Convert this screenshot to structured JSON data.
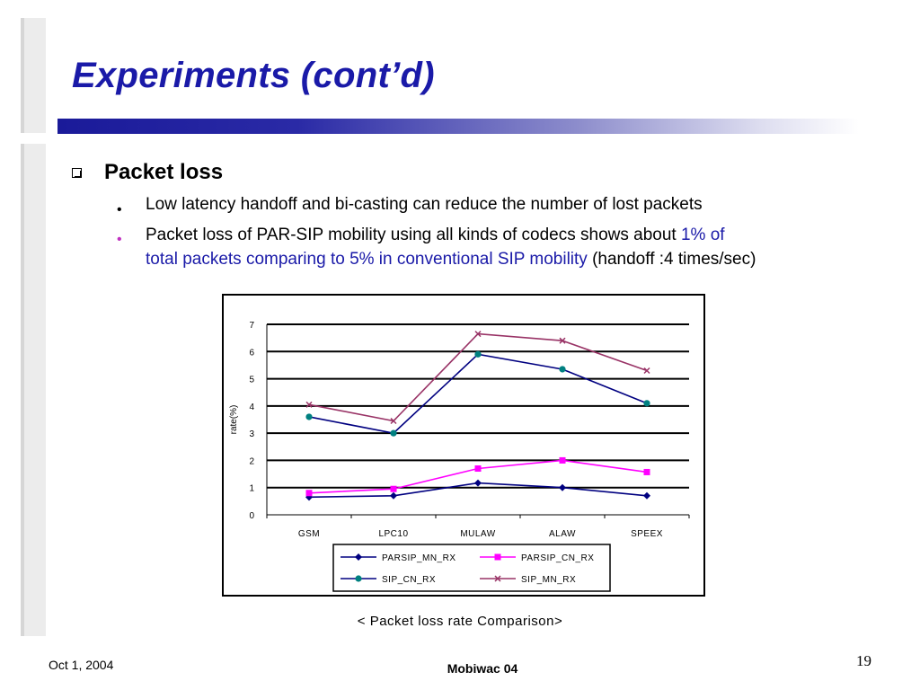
{
  "slide": {
    "title": "Experiments (cont’d)",
    "heading": "Packet loss",
    "bullets": [
      {
        "text": "Low latency handoff and bi-casting can reduce the number of lost packets"
      },
      {
        "line1_plain": "Packet loss of PAR-SIP mobility using all kinds of codecs shows about ",
        "line1_accent": "1% of",
        "line2_accent": "total packets comparing to 5% in conventional SIP mobility",
        "line2_plain": " (handoff :4 times/sec)"
      }
    ],
    "caption": "< Packet loss rate Comparison>"
  },
  "footer": {
    "date": "Oct 1, 2004",
    "center": "Mobiwac 04",
    "page": "19"
  },
  "colors": {
    "title": "#1a1aa8",
    "accent_text": "#1a1aa8",
    "bullet_dot_secondary": "#c030c0"
  },
  "chart_data": {
    "type": "line",
    "categories": [
      "GSM",
      "LPC10",
      "MULAW",
      "ALAW",
      "SPEEX"
    ],
    "ylabel": "rate(%)",
    "ylim": [
      0,
      7
    ],
    "yticks": [
      "0",
      "1",
      "2",
      "3",
      "4",
      "5",
      "6",
      "7"
    ],
    "grid": true,
    "legend_placement": "bottom",
    "series": [
      {
        "name": "PARSIP_MN_RX",
        "values": [
          0.65,
          0.7,
          1.17,
          1.0,
          0.7
        ],
        "color": "#000080",
        "marker": "diamond"
      },
      {
        "name": "PARSIP_CN_RX",
        "values": [
          0.8,
          0.95,
          1.7,
          2.0,
          1.57
        ],
        "color": "#ff00ff",
        "marker": "square"
      },
      {
        "name": "SIP_CN_RX",
        "values": [
          3.6,
          3.0,
          5.9,
          5.35,
          4.1
        ],
        "color": "#000080",
        "marker": "circle",
        "marker_color": "#008080"
      },
      {
        "name": "SIP_MN_RX",
        "values": [
          4.05,
          3.45,
          6.65,
          6.4,
          5.3
        ],
        "color": "#993366",
        "marker": "x"
      }
    ]
  }
}
